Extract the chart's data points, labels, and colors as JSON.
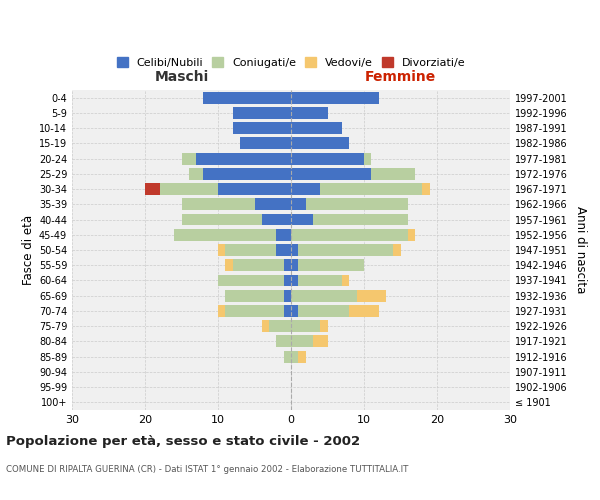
{
  "age_groups": [
    "100+",
    "95-99",
    "90-94",
    "85-89",
    "80-84",
    "75-79",
    "70-74",
    "65-69",
    "60-64",
    "55-59",
    "50-54",
    "45-49",
    "40-44",
    "35-39",
    "30-34",
    "25-29",
    "20-24",
    "15-19",
    "10-14",
    "5-9",
    "0-4"
  ],
  "birth_years": [
    "≤ 1901",
    "1902-1906",
    "1907-1911",
    "1912-1916",
    "1917-1921",
    "1922-1926",
    "1927-1931",
    "1932-1936",
    "1937-1941",
    "1942-1946",
    "1947-1951",
    "1952-1956",
    "1957-1961",
    "1962-1966",
    "1967-1971",
    "1972-1976",
    "1977-1981",
    "1982-1986",
    "1987-1991",
    "1992-1996",
    "1997-2001"
  ],
  "male": {
    "celibi": [
      0,
      0,
      0,
      0,
      0,
      0,
      1,
      1,
      1,
      1,
      2,
      2,
      4,
      5,
      10,
      12,
      13,
      7,
      8,
      8,
      12
    ],
    "coniugati": [
      0,
      0,
      0,
      1,
      2,
      3,
      8,
      8,
      9,
      7,
      7,
      14,
      11,
      10,
      8,
      2,
      2,
      0,
      0,
      0,
      0
    ],
    "vedovi": [
      0,
      0,
      0,
      0,
      0,
      1,
      1,
      0,
      0,
      1,
      1,
      0,
      0,
      0,
      0,
      0,
      0,
      0,
      0,
      0,
      0
    ],
    "divorziati": [
      0,
      0,
      0,
      0,
      0,
      0,
      0,
      0,
      0,
      0,
      0,
      0,
      0,
      0,
      2,
      0,
      0,
      0,
      0,
      0,
      0
    ]
  },
  "female": {
    "nubili": [
      0,
      0,
      0,
      0,
      0,
      0,
      1,
      0,
      1,
      1,
      1,
      0,
      3,
      2,
      4,
      11,
      10,
      8,
      7,
      5,
      12
    ],
    "coniugate": [
      0,
      0,
      0,
      1,
      3,
      4,
      7,
      9,
      6,
      9,
      13,
      16,
      13,
      14,
      14,
      6,
      1,
      0,
      0,
      0,
      0
    ],
    "vedove": [
      0,
      0,
      0,
      1,
      2,
      1,
      4,
      4,
      1,
      0,
      1,
      1,
      0,
      0,
      1,
      0,
      0,
      0,
      0,
      0,
      0
    ],
    "divorziate": [
      0,
      0,
      0,
      0,
      0,
      0,
      0,
      0,
      0,
      0,
      0,
      0,
      0,
      0,
      0,
      0,
      0,
      0,
      0,
      0,
      0
    ]
  },
  "colors": {
    "celibi": "#4472c4",
    "coniugati": "#b8cfa0",
    "vedovi": "#f5c76e",
    "divorziati": "#c0392b"
  },
  "title": "Popolazione per età, sesso e stato civile - 2002",
  "subtitle": "COMUNE DI RIPALTA GUERINA (CR) - Dati ISTAT 1° gennaio 2002 - Elaborazione TUTTITALIA.IT",
  "xlabel_left": "Maschi",
  "xlabel_right": "Femmine",
  "ylabel_left": "Fasce di età",
  "ylabel_right": "Anni di nascita",
  "xlim": 30,
  "bg_color": "#ffffff",
  "plot_bg_color": "#f0f0f0",
  "grid_color": "#cccccc",
  "legend_labels": [
    "Celibi/Nubili",
    "Coniugati/e",
    "Vedovi/e",
    "Divorziati/e"
  ]
}
